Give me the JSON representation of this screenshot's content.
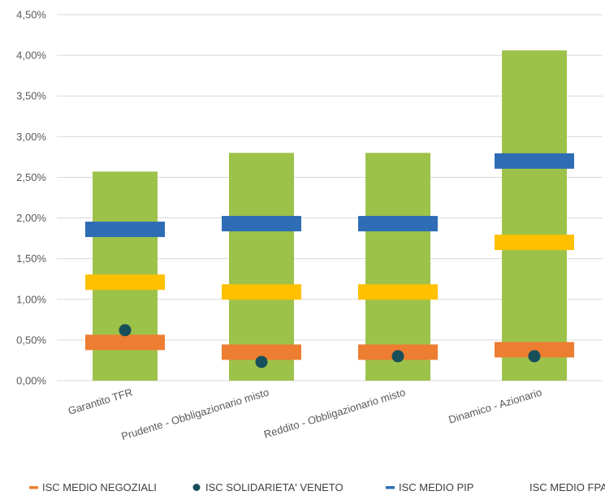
{
  "chart_data": {
    "type": "bar",
    "categories": [
      "Garantito TFR",
      "Prudente - Obbligazionario misto",
      "Reddito - Obbligazionario misto",
      "Dinamico - Azionario"
    ],
    "ylim": [
      0,
      4.5
    ],
    "yticks": [
      "0,00%",
      "0,50%",
      "1,00%",
      "1,50%",
      "2,00%",
      "2,50%",
      "3,00%",
      "3,50%",
      "4,00%",
      "4,50%"
    ],
    "ytick_values": [
      0,
      0.5,
      1.0,
      1.5,
      2.0,
      2.5,
      3.0,
      3.5,
      4.0,
      4.5
    ],
    "grid": true,
    "legend_position": "bottom",
    "series": [
      {
        "name": "ISC MEDIO FPA",
        "kind": "bar",
        "color": "#9DC24A",
        "values": [
          2.57,
          2.8,
          2.8,
          4.06
        ]
      },
      {
        "name": "ISC MEDIO PIP",
        "kind": "marker-line",
        "color": "#2E6DB5",
        "values": [
          1.86,
          1.93,
          1.93,
          2.7
        ]
      },
      {
        "name": "",
        "kind": "marker-line",
        "color": "#FFC000",
        "values": [
          1.21,
          1.09,
          1.09,
          1.7
        ]
      },
      {
        "name": "ISC MEDIO NEGOZIALI",
        "kind": "marker-line",
        "color": "#ED7D31",
        "values": [
          0.47,
          0.35,
          0.35,
          0.38
        ]
      },
      {
        "name": "ISC SOLIDARIETA' VENETO",
        "kind": "dot",
        "color": "#17505A",
        "values": [
          0.62,
          0.23,
          0.3,
          0.3
        ]
      }
    ],
    "legend": [
      {
        "label": "ISC MEDIO NEGOZIALI",
        "symbol": "dash",
        "color": "#ED7D31"
      },
      {
        "label": "ISC SOLIDARIETA' VENETO",
        "symbol": "dot",
        "color": "#17505A"
      },
      {
        "label": "ISC MEDIO PIP",
        "symbol": "dash",
        "color": "#2E6DB5"
      },
      {
        "label": "ISC MEDIO FPA",
        "symbol": "none",
        "color": "#9DC24A"
      }
    ]
  }
}
